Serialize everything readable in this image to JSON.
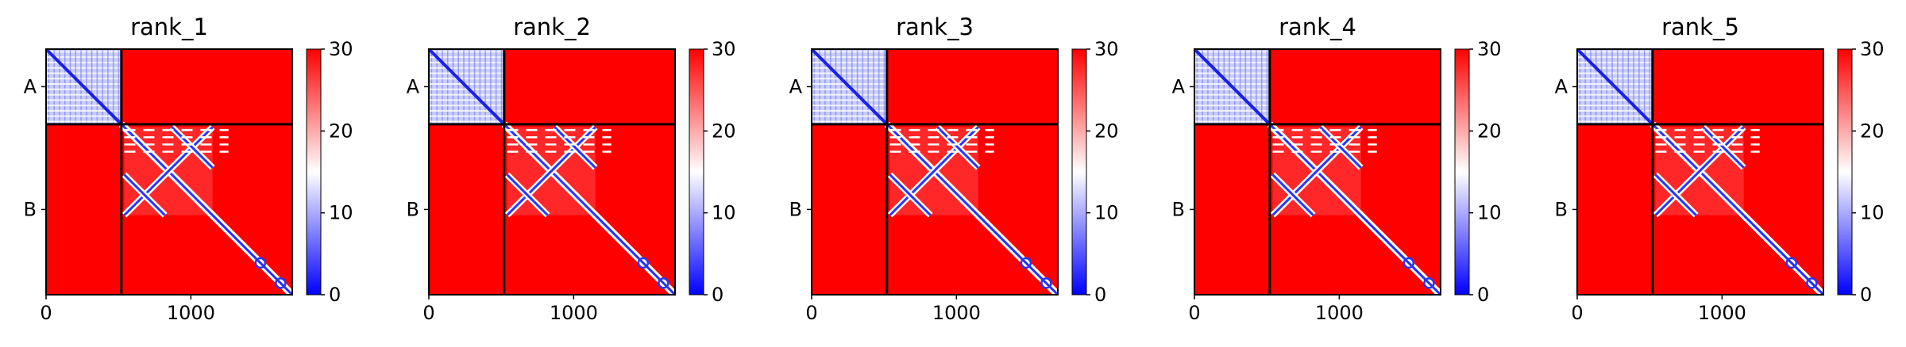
{
  "chart_data": [
    {
      "type": "heatmap",
      "title": "rank_1",
      "xticks": [
        0,
        1000
      ],
      "xlim": [
        0,
        1700
      ],
      "chains": [
        {
          "name": "A",
          "start": 0,
          "end": 520
        },
        {
          "name": "B",
          "start": 520,
          "end": 1700
        }
      ],
      "colorbar": {
        "range": [
          0,
          30
        ],
        "ticks": [
          0,
          10,
          20,
          30
        ],
        "colors": [
          "#0000ff",
          "#ffffff",
          "#ff0000"
        ]
      }
    },
    {
      "type": "heatmap",
      "title": "rank_2",
      "xticks": [
        0,
        1000
      ],
      "xlim": [
        0,
        1700
      ],
      "chains": [
        {
          "name": "A",
          "start": 0,
          "end": 520
        },
        {
          "name": "B",
          "start": 520,
          "end": 1700
        }
      ],
      "colorbar": {
        "range": [
          0,
          30
        ],
        "ticks": [
          0,
          10,
          20,
          30
        ],
        "colors": [
          "#0000ff",
          "#ffffff",
          "#ff0000"
        ]
      }
    },
    {
      "type": "heatmap",
      "title": "rank_3",
      "xticks": [
        0,
        1000
      ],
      "xlim": [
        0,
        1700
      ],
      "chains": [
        {
          "name": "A",
          "start": 0,
          "end": 520
        },
        {
          "name": "B",
          "start": 520,
          "end": 1700
        }
      ],
      "colorbar": {
        "range": [
          0,
          30
        ],
        "ticks": [
          0,
          10,
          20,
          30
        ],
        "colors": [
          "#0000ff",
          "#ffffff",
          "#ff0000"
        ]
      }
    },
    {
      "type": "heatmap",
      "title": "rank_4",
      "xticks": [
        0,
        1000
      ],
      "xlim": [
        0,
        1700
      ],
      "chains": [
        {
          "name": "A",
          "start": 0,
          "end": 520
        },
        {
          "name": "B",
          "start": 520,
          "end": 1700
        }
      ],
      "colorbar": {
        "range": [
          0,
          30
        ],
        "ticks": [
          0,
          10,
          20,
          30
        ],
        "colors": [
          "#0000ff",
          "#ffffff",
          "#ff0000"
        ]
      }
    },
    {
      "type": "heatmap",
      "title": "rank_5",
      "xticks": [
        0,
        1000
      ],
      "xlim": [
        0,
        1700
      ],
      "chains": [
        {
          "name": "A",
          "start": 0,
          "end": 520
        },
        {
          "name": "B",
          "start": 520,
          "end": 1700
        }
      ],
      "colorbar": {
        "range": [
          0,
          30
        ],
        "ticks": [
          0,
          10,
          20,
          30
        ],
        "colors": [
          "#0000ff",
          "#ffffff",
          "#ff0000"
        ]
      }
    }
  ]
}
